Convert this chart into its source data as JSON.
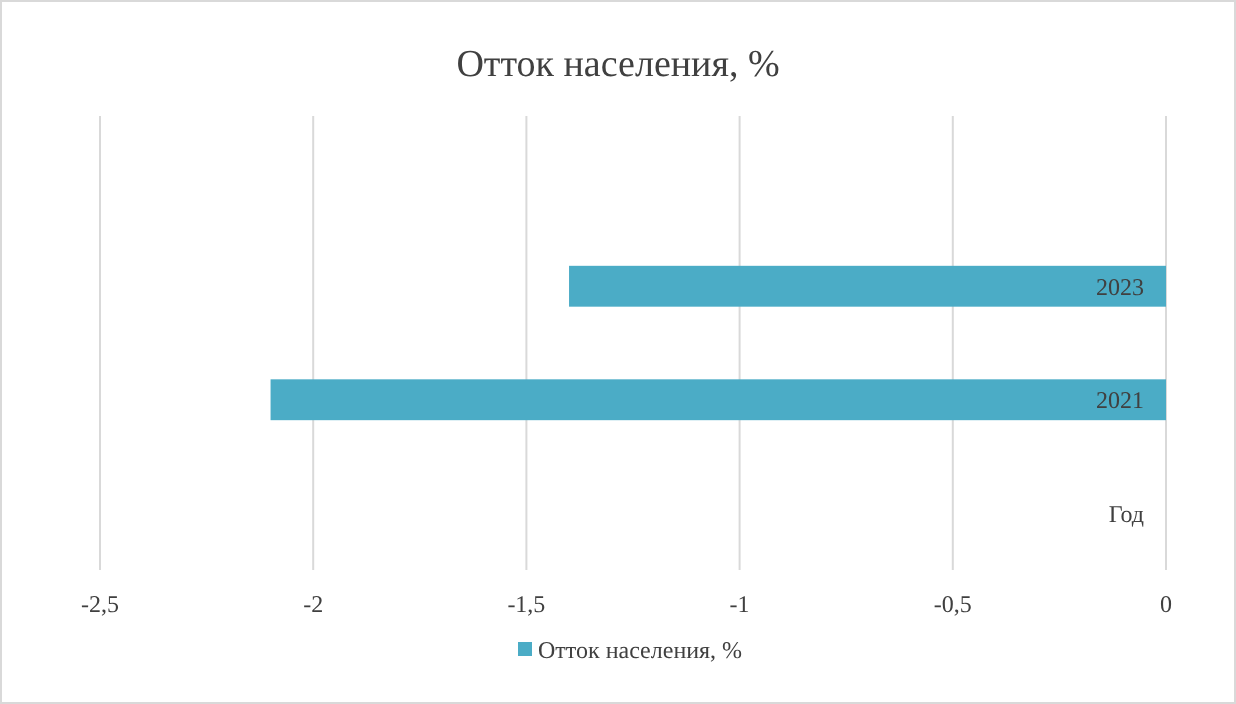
{
  "chart_data": {
    "type": "bar",
    "orientation": "horizontal",
    "title": "Отток населения, %",
    "categories": [
      null,
      "2023",
      "2021",
      "Год"
    ],
    "series": [
      {
        "name": "Отток населения, %",
        "color": "#4bacc6",
        "values": [
          null,
          -1.4,
          -2.1,
          null
        ]
      }
    ],
    "xlim": [
      -2.5,
      0
    ],
    "xticks": [
      {
        "value": -2.5,
        "label": "-2,5"
      },
      -2,
      {
        "value": -1.5,
        "label": "-1,5"
      },
      -1,
      {
        "value": -0.5,
        "label": "-0,5"
      },
      0
    ],
    "grid": "x",
    "legend": "bottom"
  }
}
